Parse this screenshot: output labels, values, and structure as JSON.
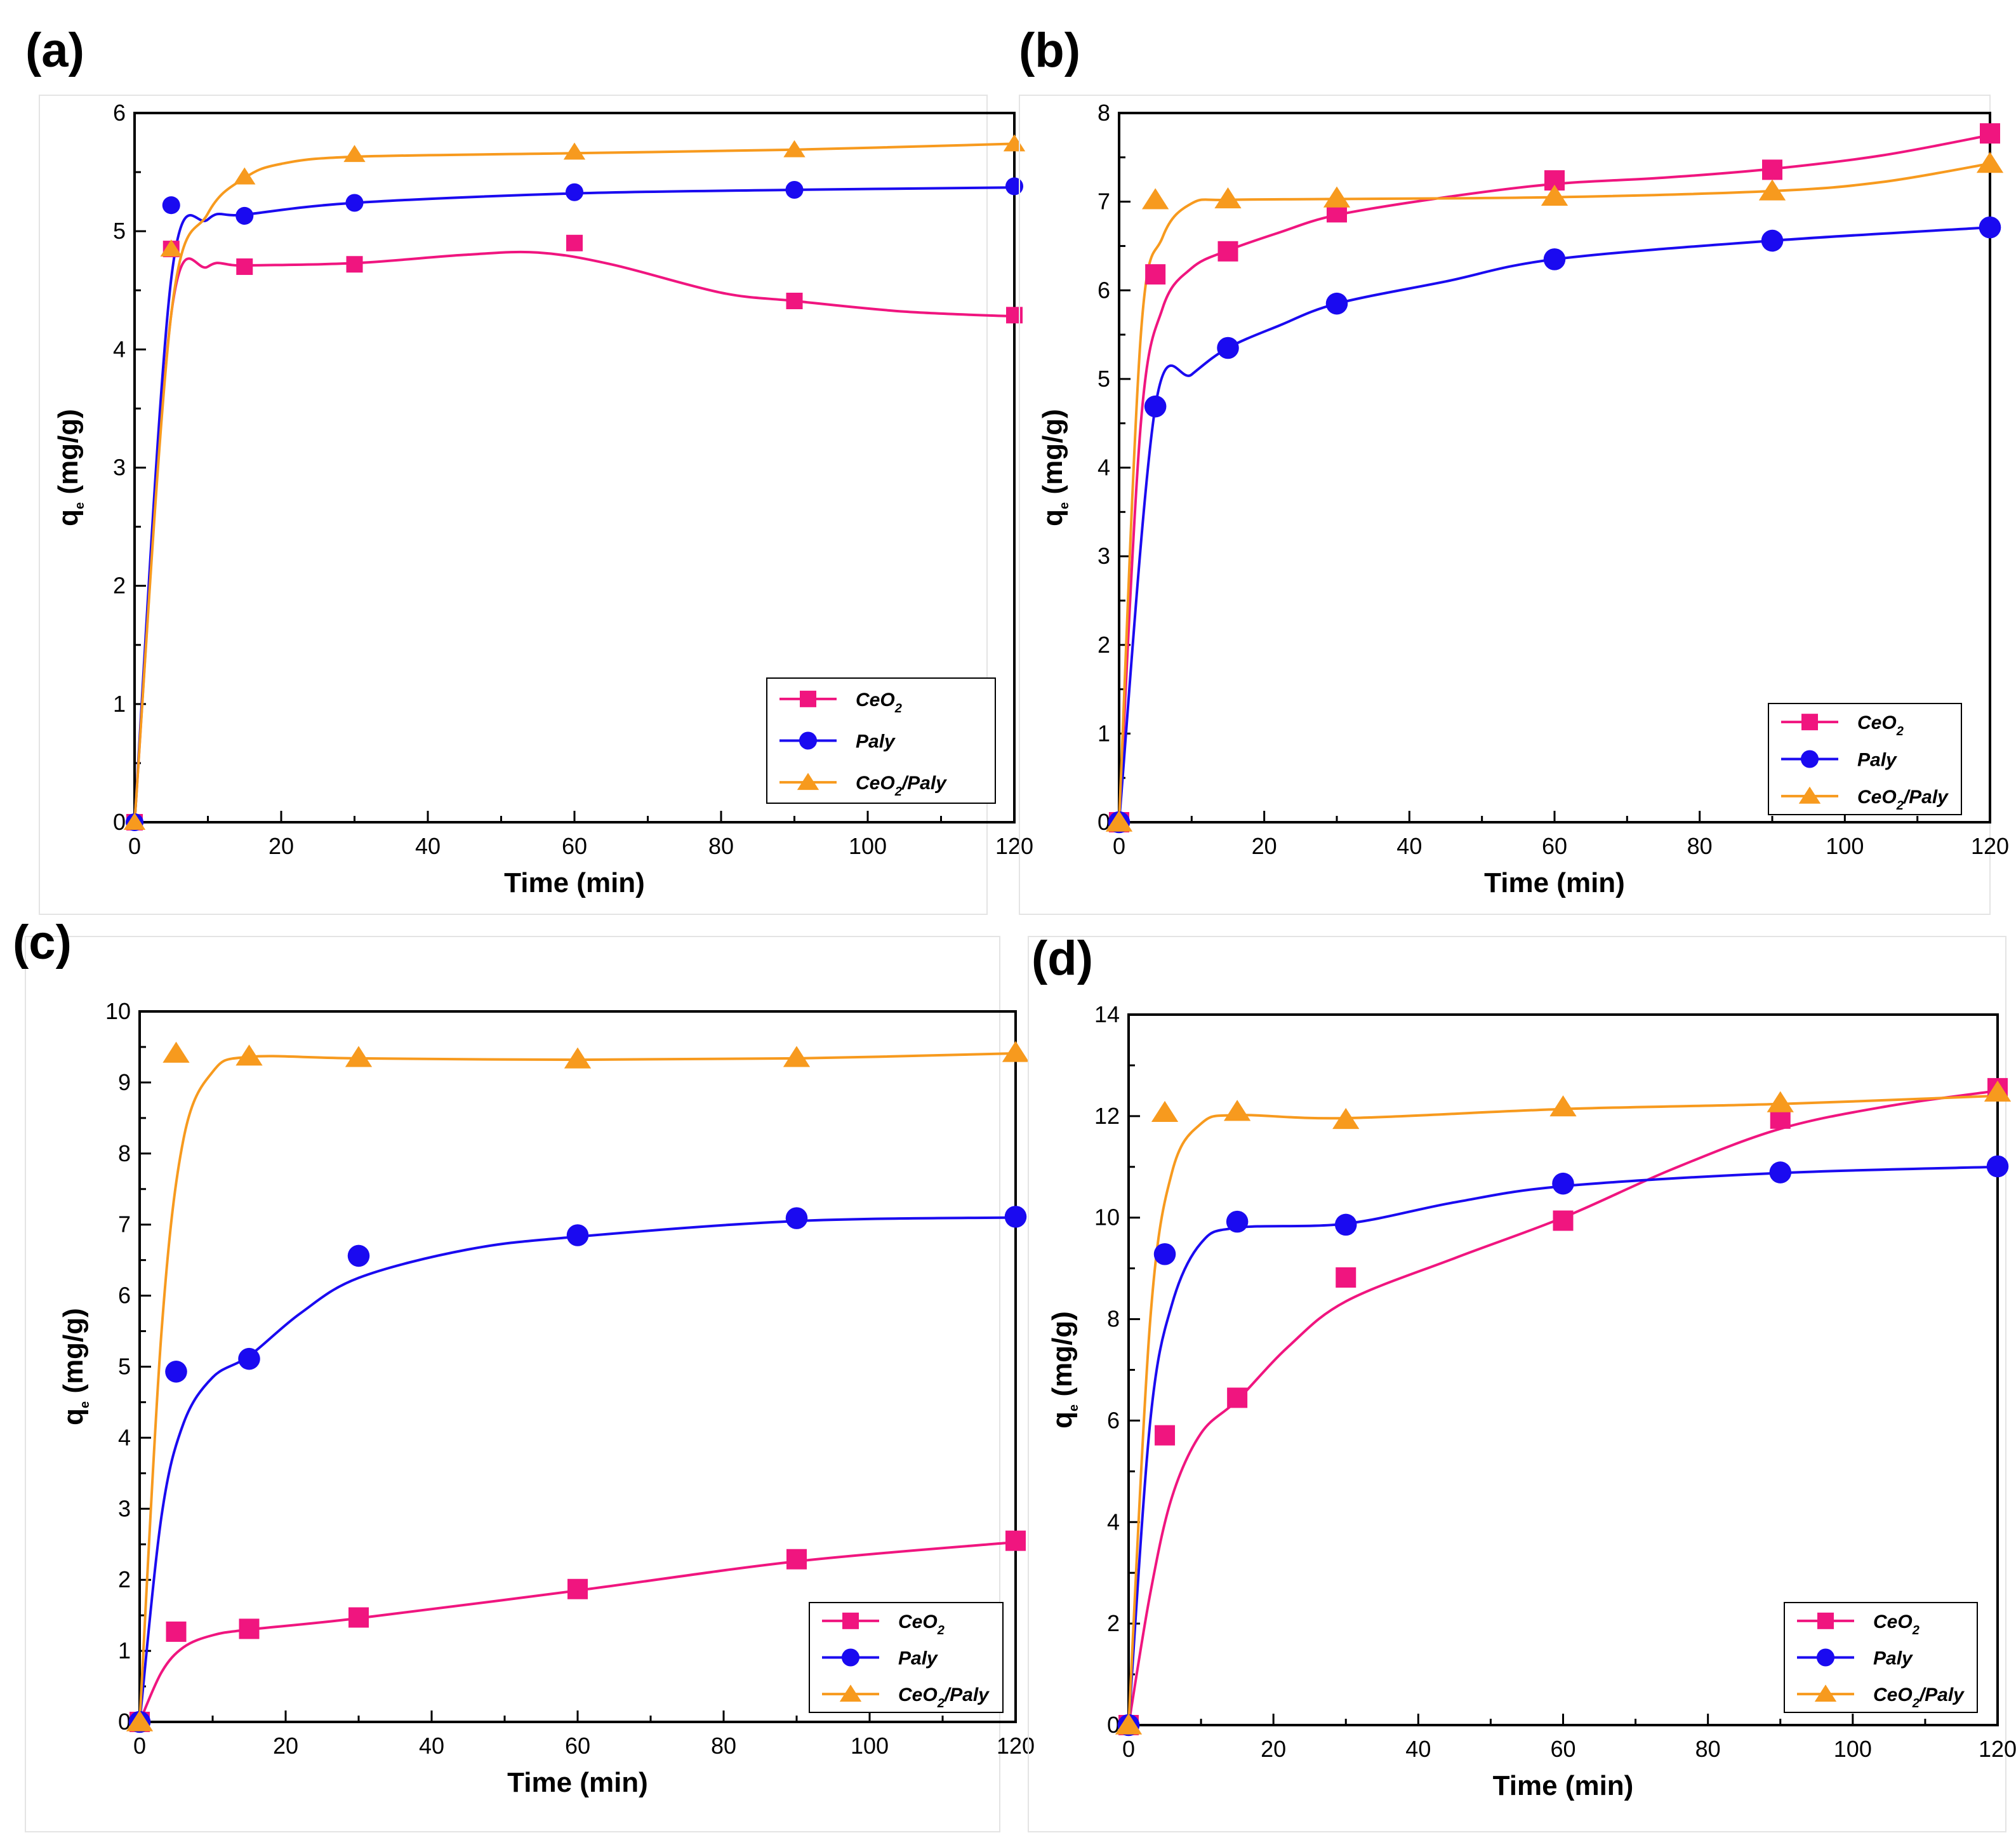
{
  "figure": {
    "colors": {
      "CeO2": "#f0157f",
      "Paly": "#1a0af0",
      "CeO2/Paly": "#f79a1e"
    },
    "x_tick_labels": [
      "0",
      "20",
      "40",
      "60",
      "80",
      "100",
      "120"
    ],
    "x_axis_label": "Time (min)",
    "y_axis_label_main": "q",
    "y_axis_label_sub": "e",
    "y_axis_label_units": " (mg/g)"
  },
  "chart_data": [
    {
      "panel": "(a)",
      "type": "scatter",
      "xlim": [
        0,
        120
      ],
      "ylim": [
        0,
        6
      ],
      "y_ticks": [
        0,
        1,
        2,
        3,
        4,
        5,
        6
      ],
      "legend_position": "bottom-right",
      "series": [
        {
          "name": "CeO2",
          "label_main": "CeO",
          "label_sub": "2",
          "label_tail": "",
          "marker": "square",
          "x": [
            0,
            5,
            15,
            30,
            60,
            90,
            120
          ],
          "y": [
            0,
            4.85,
            4.7,
            4.72,
            4.9,
            4.41,
            4.29
          ],
          "fit": [
            [
              0,
              0
            ],
            [
              5,
              4.3
            ],
            [
              10,
              4.7
            ],
            [
              15,
              4.71
            ],
            [
              30,
              4.73
            ],
            [
              45,
              4.8
            ],
            [
              55,
              4.82
            ],
            [
              65,
              4.72
            ],
            [
              80,
              4.48
            ],
            [
              90,
              4.41
            ],
            [
              105,
              4.32
            ],
            [
              120,
              4.28
            ]
          ]
        },
        {
          "name": "Paly",
          "label_main": "Paly",
          "label_sub": "",
          "label_tail": "",
          "marker": "circle",
          "x": [
            0,
            5,
            15,
            30,
            60,
            90,
            120
          ],
          "y": [
            0,
            5.22,
            5.13,
            5.24,
            5.33,
            5.35,
            5.38
          ],
          "fit": [
            [
              0,
              0
            ],
            [
              5,
              4.6
            ],
            [
              10,
              5.1
            ],
            [
              15,
              5.14
            ],
            [
              30,
              5.24
            ],
            [
              60,
              5.32
            ],
            [
              90,
              5.35
            ],
            [
              120,
              5.37
            ]
          ]
        },
        {
          "name": "CeO2/Paly",
          "label_main": "CeO",
          "label_sub": "2",
          "label_tail": "/Paly",
          "marker": "triangle",
          "x": [
            0,
            5,
            15,
            30,
            60,
            90,
            120
          ],
          "y": [
            0,
            4.85,
            5.46,
            5.65,
            5.67,
            5.69,
            5.74
          ],
          "fit": [
            [
              0,
              0
            ],
            [
              5,
              4.3
            ],
            [
              10,
              5.15
            ],
            [
              15,
              5.45
            ],
            [
              20,
              5.57
            ],
            [
              30,
              5.63
            ],
            [
              60,
              5.66
            ],
            [
              90,
              5.69
            ],
            [
              120,
              5.74
            ]
          ]
        }
      ]
    },
    {
      "panel": "(b)",
      "type": "scatter",
      "xlim": [
        0,
        120
      ],
      "ylim": [
        0,
        8
      ],
      "y_ticks": [
        0,
        1,
        2,
        3,
        4,
        5,
        6,
        7,
        8
      ],
      "legend_position": "bottom-right",
      "series": [
        {
          "name": "CeO2",
          "label_main": "CeO",
          "label_sub": "2",
          "label_tail": "",
          "marker": "square",
          "x": [
            0,
            5,
            15,
            30,
            60,
            90,
            120
          ],
          "y": [
            0,
            6.18,
            6.44,
            6.88,
            7.24,
            7.36,
            7.77
          ],
          "fit": [
            [
              0,
              0
            ],
            [
              3,
              4.5
            ],
            [
              6,
              5.8
            ],
            [
              10,
              6.25
            ],
            [
              15,
              6.45
            ],
            [
              22,
              6.65
            ],
            [
              30,
              6.85
            ],
            [
              45,
              7.05
            ],
            [
              60,
              7.2
            ],
            [
              75,
              7.27
            ],
            [
              90,
              7.37
            ],
            [
              105,
              7.52
            ],
            [
              120,
              7.75
            ]
          ]
        },
        {
          "name": "Paly",
          "label_main": "Paly",
          "label_sub": "",
          "label_tail": "",
          "marker": "circle",
          "x": [
            0,
            5,
            15,
            30,
            60,
            90,
            120
          ],
          "y": [
            0,
            4.69,
            5.35,
            5.85,
            6.35,
            6.56,
            6.71
          ],
          "fit": [
            [
              0,
              0
            ],
            [
              5,
              4.69
            ],
            [
              10,
              5.05
            ],
            [
              15,
              5.35
            ],
            [
              22,
              5.6
            ],
            [
              30,
              5.85
            ],
            [
              45,
              6.1
            ],
            [
              60,
              6.35
            ],
            [
              90,
              6.56
            ],
            [
              120,
              6.71
            ]
          ]
        },
        {
          "name": "CeO2/Paly",
          "label_main": "CeO",
          "label_sub": "2",
          "label_tail": "/Paly",
          "marker": "triangle",
          "x": [
            0,
            5,
            15,
            30,
            60,
            90,
            120
          ],
          "y": [
            0,
            7.02,
            7.03,
            7.04,
            7.06,
            7.12,
            7.43
          ],
          "fit": [
            [
              0,
              0
            ],
            [
              3,
              5.5
            ],
            [
              6,
              6.6
            ],
            [
              10,
              6.98
            ],
            [
              15,
              7.02
            ],
            [
              30,
              7.03
            ],
            [
              60,
              7.05
            ],
            [
              90,
              7.12
            ],
            [
              105,
              7.22
            ],
            [
              120,
              7.43
            ]
          ]
        }
      ]
    },
    {
      "panel": "(c)",
      "type": "scatter",
      "xlim": [
        0,
        120
      ],
      "ylim": [
        0,
        10
      ],
      "y_ticks": [
        0,
        1,
        2,
        3,
        4,
        5,
        6,
        7,
        8,
        9,
        10
      ],
      "legend_position": "bottom-right",
      "series": [
        {
          "name": "CeO2",
          "label_main": "CeO",
          "label_sub": "2",
          "label_tail": "",
          "marker": "square",
          "x": [
            0,
            5,
            15,
            30,
            60,
            90,
            120
          ],
          "y": [
            0,
            1.27,
            1.31,
            1.47,
            1.87,
            2.29,
            2.55
          ],
          "fit": [
            [
              0,
              0
            ],
            [
              3,
              0.7
            ],
            [
              6,
              1.05
            ],
            [
              10,
              1.22
            ],
            [
              15,
              1.3
            ],
            [
              30,
              1.46
            ],
            [
              60,
              1.85
            ],
            [
              90,
              2.26
            ],
            [
              120,
              2.53
            ]
          ]
        },
        {
          "name": "Paly",
          "label_main": "Paly",
          "label_sub": "",
          "label_tail": "",
          "marker": "circle",
          "x": [
            0,
            5,
            15,
            30,
            60,
            90,
            120
          ],
          "y": [
            0,
            4.93,
            5.11,
            6.56,
            6.85,
            7.09,
            7.11
          ],
          "fit": [
            [
              0,
              0
            ],
            [
              3,
              2.9
            ],
            [
              6,
              4.2
            ],
            [
              10,
              4.85
            ],
            [
              15,
              5.15
            ],
            [
              22,
              5.75
            ],
            [
              30,
              6.25
            ],
            [
              45,
              6.65
            ],
            [
              60,
              6.83
            ],
            [
              90,
              7.05
            ],
            [
              120,
              7.1
            ]
          ]
        },
        {
          "name": "CeO2/Paly",
          "label_main": "CeO",
          "label_sub": "2",
          "label_tail": "/Paly",
          "marker": "triangle",
          "x": [
            0,
            5,
            15,
            30,
            60,
            90,
            120
          ],
          "y": [
            0,
            9.41,
            9.37,
            9.35,
            9.33,
            9.35,
            9.42
          ],
          "fit": [
            [
              0,
              0
            ],
            [
              3,
              5.5
            ],
            [
              6,
              8.2
            ],
            [
              10,
              9.15
            ],
            [
              15,
              9.36
            ],
            [
              30,
              9.34
            ],
            [
              60,
              9.32
            ],
            [
              90,
              9.34
            ],
            [
              120,
              9.41
            ]
          ]
        }
      ]
    },
    {
      "panel": "(d)",
      "type": "scatter",
      "xlim": [
        0,
        120
      ],
      "ylim": [
        0,
        14
      ],
      "y_ticks": [
        0,
        2,
        4,
        6,
        8,
        10,
        12,
        14
      ],
      "legend_position": "bottom-right",
      "series": [
        {
          "name": "CeO2",
          "label_main": "CeO",
          "label_sub": "2",
          "label_tail": "",
          "marker": "square",
          "x": [
            0,
            5,
            15,
            30,
            60,
            90,
            120
          ],
          "y": [
            0,
            5.71,
            6.45,
            8.82,
            9.94,
            11.95,
            12.55
          ],
          "fit": [
            [
              0,
              0
            ],
            [
              3,
              2.6
            ],
            [
              6,
              4.5
            ],
            [
              10,
              5.75
            ],
            [
              15,
              6.4
            ],
            [
              22,
              7.45
            ],
            [
              30,
              8.35
            ],
            [
              45,
              9.2
            ],
            [
              60,
              10.0
            ],
            [
              75,
              10.95
            ],
            [
              90,
              11.75
            ],
            [
              105,
              12.2
            ],
            [
              120,
              12.5
            ]
          ]
        },
        {
          "name": "Paly",
          "label_main": "Paly",
          "label_sub": "",
          "label_tail": "",
          "marker": "circle",
          "x": [
            0,
            5,
            15,
            30,
            60,
            90,
            120
          ],
          "y": [
            0,
            9.28,
            9.92,
            9.86,
            10.67,
            10.89,
            11.01
          ],
          "fit": [
            [
              0,
              0
            ],
            [
              3,
              6.0
            ],
            [
              6,
              8.3
            ],
            [
              10,
              9.5
            ],
            [
              15,
              9.8
            ],
            [
              30,
              9.88
            ],
            [
              45,
              10.3
            ],
            [
              60,
              10.62
            ],
            [
              90,
              10.88
            ],
            [
              120,
              11.0
            ]
          ]
        },
        {
          "name": "CeO2/Paly",
          "label_main": "CeO",
          "label_sub": "2",
          "label_tail": "/Paly",
          "marker": "triangle",
          "x": [
            0,
            5,
            15,
            30,
            60,
            90,
            120
          ],
          "y": [
            0,
            12.07,
            12.09,
            11.93,
            12.18,
            12.26,
            12.47
          ],
          "fit": [
            [
              0,
              0
            ],
            [
              3,
              8.0
            ],
            [
              6,
              10.9
            ],
            [
              10,
              11.85
            ],
            [
              15,
              12.02
            ],
            [
              30,
              11.96
            ],
            [
              60,
              12.14
            ],
            [
              90,
              12.24
            ],
            [
              120,
              12.4
            ]
          ]
        }
      ]
    }
  ]
}
